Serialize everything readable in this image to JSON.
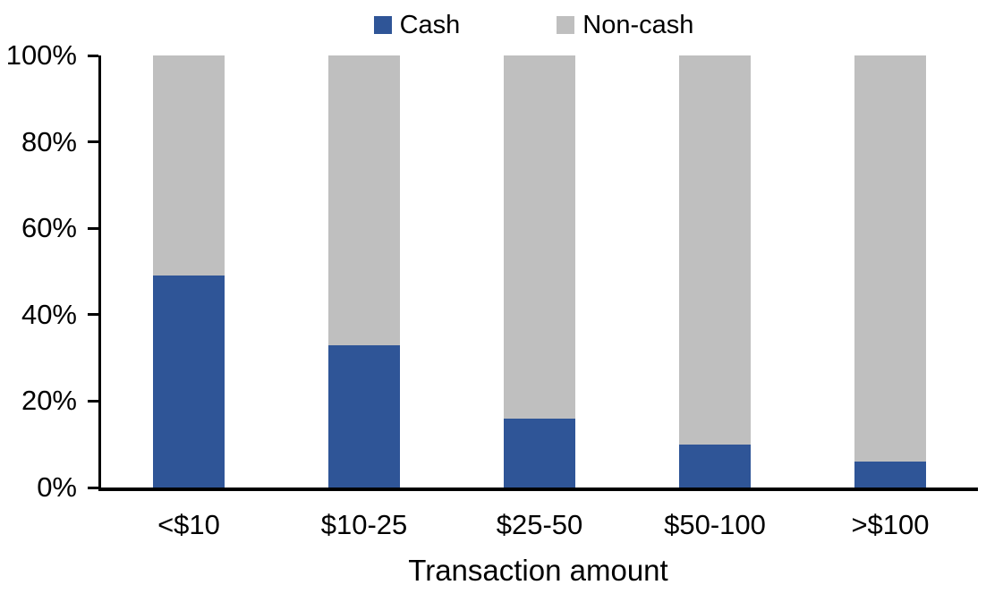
{
  "chart_data": {
    "type": "bar",
    "stacked": true,
    "title": "",
    "xlabel": "Transaction amount",
    "ylabel": "",
    "categories": [
      "<$10",
      "$10-25",
      "$25-50",
      "$50-100",
      ">$100"
    ],
    "series": [
      {
        "name": "Cash",
        "color": "#2F5597",
        "values": [
          49,
          33,
          16,
          10,
          6
        ]
      },
      {
        "name": "Non-cash",
        "color": "#BFBFBF",
        "values": [
          51,
          67,
          84,
          90,
          94
        ]
      }
    ],
    "ylim": [
      0,
      100
    ],
    "yticks": [
      "0%",
      "20%",
      "40%",
      "60%",
      "80%",
      "100%"
    ],
    "grid": false,
    "legend_position": "top-center",
    "axis_color": "#000000",
    "background": "#FFFFFF"
  }
}
